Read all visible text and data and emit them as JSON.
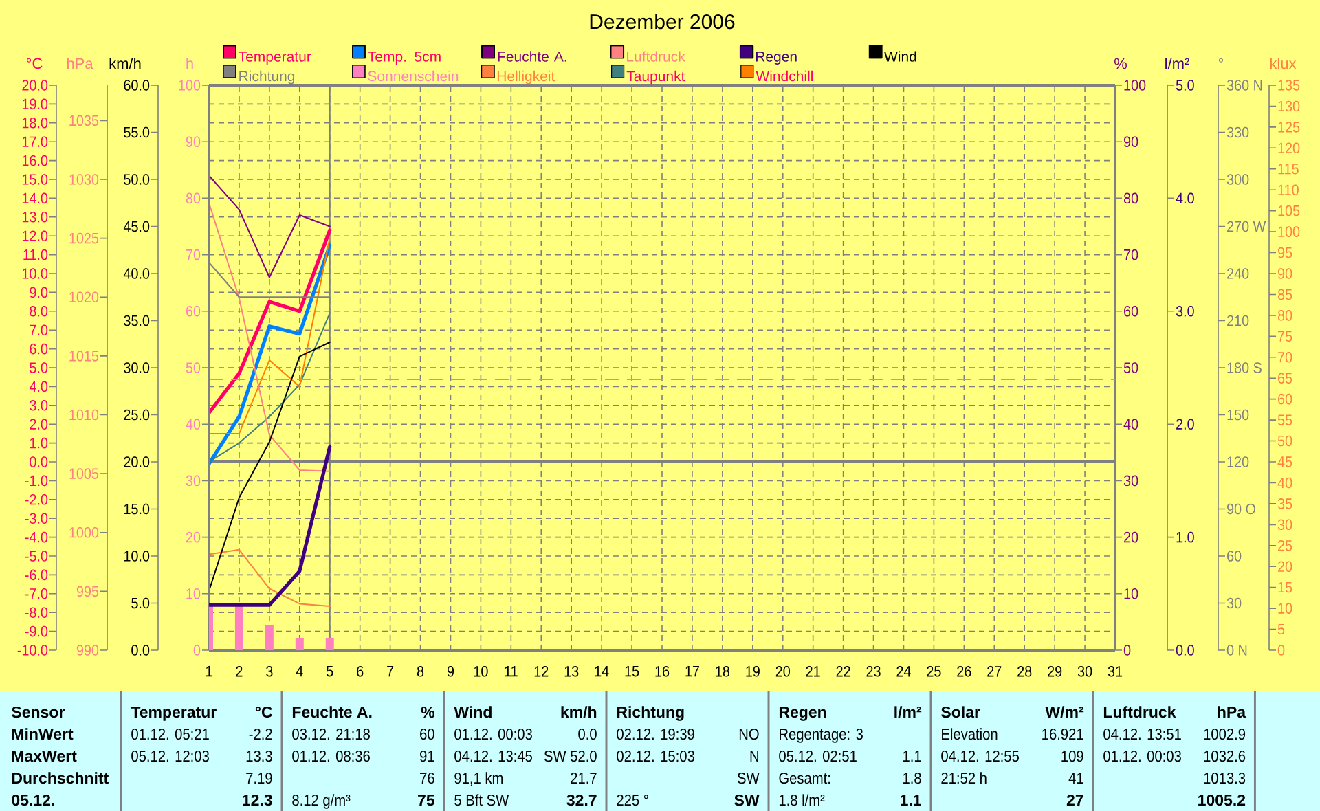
{
  "chart_data": [
    {
      "type": "line",
      "title": "Dezember 2006",
      "x": [
        1,
        2,
        3,
        4,
        5
      ],
      "xlim": [
        1,
        31
      ],
      "xticks": [
        1,
        2,
        3,
        4,
        5,
        6,
        7,
        8,
        9,
        10,
        11,
        12,
        13,
        14,
        15,
        16,
        17,
        18,
        19,
        20,
        21,
        22,
        23,
        24,
        25,
        26,
        27,
        28,
        29,
        30,
        31
      ],
      "ylabel": "°C",
      "ylim": [
        -10,
        20
      ],
      "yticks": [
        {
          "value": -10,
          "label": "-10.0"
        },
        {
          "value": -9,
          "label": "-9.0"
        },
        {
          "value": -8,
          "label": "-8.0"
        },
        {
          "value": -7,
          "label": "-7.0"
        },
        {
          "value": -6,
          "label": "-6.0"
        },
        {
          "value": -5,
          "label": "-5.0"
        },
        {
          "value": -4,
          "label": "-4.0"
        },
        {
          "value": -3,
          "label": "-3.0"
        },
        {
          "value": -2,
          "label": "-2.0"
        },
        {
          "value": -1,
          "label": "-1.0"
        },
        {
          "value": 0,
          "label": "0.0"
        },
        {
          "value": 1,
          "label": "1.0"
        },
        {
          "value": 2,
          "label": "2.0"
        },
        {
          "value": 3,
          "label": "3.0"
        },
        {
          "value": 4,
          "label": "4.0"
        },
        {
          "value": 5,
          "label": "5.0"
        },
        {
          "value": 6,
          "label": "6.0"
        },
        {
          "value": 7,
          "label": "7.0"
        },
        {
          "value": 8,
          "label": "8.0"
        },
        {
          "value": 9,
          "label": "9.0"
        },
        {
          "value": 10,
          "label": "10.0"
        },
        {
          "value": 11,
          "label": "11.0"
        },
        {
          "value": 12,
          "label": "12.0"
        },
        {
          "value": 13,
          "label": "13.0"
        },
        {
          "value": 14,
          "label": "14.0"
        },
        {
          "value": 15,
          "label": "15.0"
        },
        {
          "value": 16,
          "label": "16.0"
        },
        {
          "value": 17,
          "label": "17.0"
        },
        {
          "value": 18,
          "label": "18.0"
        },
        {
          "value": 19,
          "label": "19.0"
        },
        {
          "value": 20,
          "label": "20.0"
        }
      ],
      "y2label": "%",
      "y2lim": [
        0,
        100
      ],
      "y2ticks": [
        0,
        10,
        20,
        30,
        40,
        50,
        60,
        70,
        80,
        90,
        100
      ],
      "grid": true,
      "legend": "top",
      "series": [
        {
          "name": "Temperatur",
          "color": "#ff0066",
          "values": [
            2.6,
            4.7,
            8.5,
            8.0,
            12.3
          ]
        },
        {
          "name": "Temp. 5cm",
          "color": "#0080ff",
          "values": [
            -0.1,
            2.4,
            7.2,
            6.8,
            11.5
          ]
        },
        {
          "name": "Feuchte A.",
          "color": "#800080",
          "axis": "y2",
          "values": [
            84,
            78,
            66,
            77,
            75
          ]
        },
        {
          "name": "Taupunkt",
          "color": "#408080",
          "values": [
            0.0,
            1.0,
            2.4,
            4.1,
            7.9
          ]
        },
        {
          "name": "Windchill",
          "color": "#ff8000",
          "values": [
            1.5,
            1.5,
            5.4,
            4.0,
            11.9
          ]
        }
      ],
      "ref_lines": [
        {
          "axis": "y",
          "value": 0,
          "color": "#808080"
        },
        {
          "axis": "x",
          "value": 5,
          "color": "#808080"
        }
      ]
    },
    {
      "type": "line",
      "x": [
        1,
        2,
        3,
        4,
        5
      ],
      "xlim": [
        1,
        31
      ],
      "tick_labels": "y",
      "ylabel": "hPa",
      "ylim": [
        990,
        1038
      ],
      "yticks": [
        990,
        995,
        1000,
        1005,
        1010,
        1015,
        1020,
        1025,
        1030,
        1035
      ],
      "y2label": "klux",
      "y2lim": [
        0,
        135
      ],
      "y2ticks": [
        0,
        5,
        10,
        15,
        20,
        25,
        30,
        35,
        40,
        45,
        50,
        55,
        60,
        65,
        70,
        75,
        80,
        85,
        90,
        95,
        100,
        105,
        110,
        115,
        120,
        125,
        130,
        135
      ],
      "legend": "top",
      "series": [
        {
          "name": "Luftdruck",
          "color": "#ff8080",
          "values": [
            1028.0,
            1019.9,
            1008.3,
            1005.3,
            1005.2
          ]
        },
        {
          "name": "Helligkeit",
          "color": "#ff8040",
          "axis": "y2",
          "values": [
            22.9,
            24.0,
            14.7,
            11.1,
            10.5
          ]
        }
      ],
      "ref_lines": [
        {
          "axis": "y",
          "value": 1013,
          "color": "#ff8080",
          "line_style": "dashed"
        }
      ]
    },
    {
      "type": "line",
      "x": [
        1,
        2,
        3,
        4,
        5
      ],
      "xlim": [
        1,
        31
      ],
      "tick_labels": "y",
      "ylabel": "km/h",
      "ylim": [
        0,
        60
      ],
      "yticks": [
        {
          "value": 0,
          "label": "0.0"
        },
        {
          "value": 5,
          "label": "5.0"
        },
        {
          "value": 10,
          "label": "10.0"
        },
        {
          "value": 15,
          "label": "15.0"
        },
        {
          "value": 20,
          "label": "20.0"
        },
        {
          "value": 25,
          "label": "25.0"
        },
        {
          "value": 30,
          "label": "30.0"
        },
        {
          "value": 35,
          "label": "35.0"
        },
        {
          "value": 40,
          "label": "40.0"
        },
        {
          "value": 45,
          "label": "45.0"
        },
        {
          "value": 50,
          "label": "50.0"
        },
        {
          "value": 55,
          "label": "55.0"
        },
        {
          "value": 60,
          "label": "60.0"
        }
      ],
      "y2label": "°",
      "y2lim": [
        0,
        360
      ],
      "y2ticks": [
        {
          "value": 0,
          "label": "0 N"
        },
        30,
        60,
        {
          "value": 90,
          "label": "90 O"
        },
        120,
        150,
        {
          "value": 180,
          "label": "180 S"
        },
        210,
        240,
        {
          "value": 270,
          "label": "270 W"
        },
        300,
        330,
        {
          "value": 360,
          "label": "360 N"
        }
      ],
      "legend": "top",
      "series": [
        {
          "name": "Wind",
          "color": "#000000",
          "values": [
            6.3,
            16.2,
            22.1,
            31.2,
            32.7
          ]
        },
        {
          "name": "Richtung",
          "color": "#808080",
          "axis": "y2",
          "values": [
            247,
            225,
            225,
            225,
            225
          ]
        }
      ]
    },
    {
      "type": "line",
      "x": [
        1,
        2,
        3,
        4,
        5
      ],
      "xlim": [
        1,
        31
      ],
      "tick_labels": "y",
      "ylabel": "h",
      "ylim": [
        0,
        100
      ],
      "yticks": [
        0,
        10,
        20,
        30,
        40,
        50,
        60,
        70,
        80,
        90,
        100
      ],
      "y2label": "l/m²",
      "y2lim": [
        0,
        5
      ],
      "y2ticks": [
        {
          "value": 0,
          "label": "0.0"
        },
        {
          "value": 1,
          "label": "1.0"
        },
        {
          "value": 2,
          "label": "2.0"
        },
        {
          "value": 3,
          "label": "3.0"
        },
        {
          "value": 4,
          "label": "4.0"
        },
        {
          "value": 5,
          "label": "5.0"
        }
      ],
      "legend": "top",
      "series": [
        {
          "name": "Regen",
          "color": "#400080",
          "axis": "y2",
          "values": [
            0.4,
            0.4,
            0.4,
            0.7,
            1.8
          ]
        },
        {
          "name": "Sonnenschein",
          "color": "#ff80c0",
          "type": "bar",
          "values": [
            8.4,
            8.2,
            4.4,
            2.2,
            2.2
          ]
        }
      ]
    },
    {
      "type": "other",
      "annotations": [
        "Sensor",
        "Temperatur",
        "°C",
        "Feuchte A.",
        "%",
        "Wind",
        "km/h",
        "Richtung",
        "Regen",
        "l/m²",
        "Solar",
        "W/m²",
        "Luftdruck",
        "hPa",
        "MinWert",
        "01.12. 05:21",
        "-2.2",
        "03.12. 21:18",
        "60",
        "01.12. 00:03",
        "0.0",
        "02.12. 19:39",
        "NO",
        "Regentage: 3",
        "Elevation",
        "16.921",
        "04.12. 13:51",
        "1002.9",
        "MaxWert",
        "05.12. 12:03",
        "13.3",
        "01.12. 08:36",
        "91",
        "04.12. 13:45",
        "SW 52.0",
        "02.12. 15:03",
        "N",
        "05.12. 02:51",
        "1.1",
        "04.12. 12:55",
        "109",
        "01.12. 00:03",
        "1032.6",
        "Durchschnitt",
        "7.19",
        "76",
        "91,1 km",
        "21.7",
        "SW",
        "Gesamt:",
        "1.8",
        "21:52 h",
        "41",
        "1013.3",
        "05.12.",
        "12.3",
        "8.12 g/m³",
        "75",
        "5 Bft SW",
        "32.7",
        "225 °",
        "SW",
        "1.8 l/m²",
        "1.1",
        "27",
        "1005.2"
      ]
    }
  ]
}
